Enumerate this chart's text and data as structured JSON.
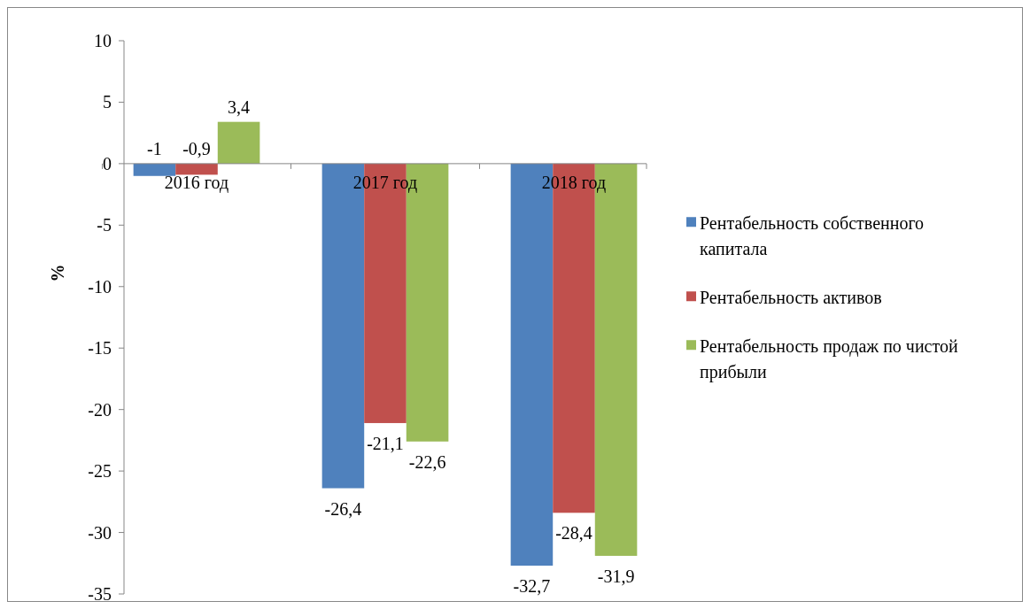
{
  "chart_data": {
    "type": "bar",
    "ylabel": "%",
    "categories": [
      "2016 год",
      "2017 год",
      "2018 год"
    ],
    "series": [
      {
        "name": "Рентабельность собственного капитала",
        "color": "#4f81bd",
        "values": [
          -1,
          -26.4,
          -32.7
        ],
        "value_labels": [
          "-1",
          "-26,4",
          "-32,7"
        ]
      },
      {
        "name": "Рентабельность активов",
        "color": "#c0504d",
        "values": [
          -0.9,
          -21.1,
          -28.4
        ],
        "value_labels": [
          "-0,9",
          "-21,1",
          "-28,4"
        ]
      },
      {
        "name": "Рентабельность продаж по чистой прибыли",
        "color": "#9bbb59",
        "values": [
          3.4,
          -22.6,
          -31.9
        ],
        "value_labels": [
          "3,4",
          "-22,6",
          "-31,9"
        ]
      }
    ],
    "ylim": [
      -35,
      10
    ],
    "yticks": [
      -35,
      -30,
      -25,
      -20,
      -15,
      -10,
      -5,
      0,
      5,
      10
    ],
    "grid": false,
    "legend": "right"
  }
}
